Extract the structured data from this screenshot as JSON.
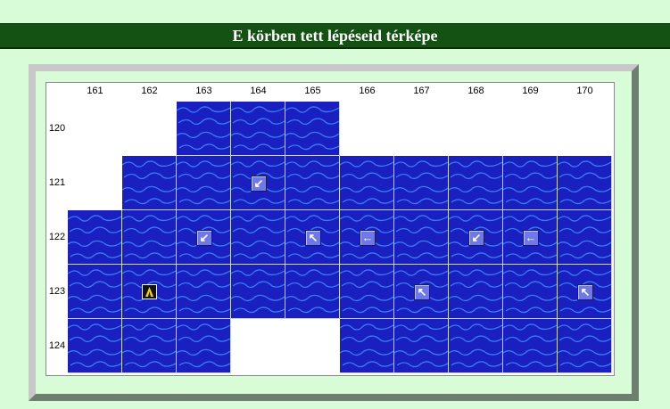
{
  "header": {
    "title": "E körben tett lépéseid térképe"
  },
  "map": {
    "columns": [
      "161",
      "162",
      "163",
      "164",
      "165",
      "166",
      "167",
      "168",
      "169",
      "170"
    ],
    "rows": [
      "120",
      "121",
      "122",
      "123",
      "124"
    ],
    "water_tiles": {
      "120": [
        "163",
        "164",
        "165"
      ],
      "121": [
        "162",
        "163",
        "164",
        "165",
        "166",
        "167",
        "168",
        "169",
        "170"
      ],
      "122": [
        "161",
        "162",
        "163",
        "164",
        "165",
        "166",
        "167",
        "168",
        "169",
        "170"
      ],
      "123": [
        "161",
        "162",
        "163",
        "164",
        "165",
        "166",
        "167",
        "168",
        "169",
        "170"
      ],
      "124": [
        "161",
        "162",
        "163",
        "166",
        "167",
        "168",
        "169",
        "170"
      ]
    },
    "moves": [
      {
        "row": "121",
        "col": "164",
        "direction": "down-left",
        "glyph": "↙"
      },
      {
        "row": "122",
        "col": "163",
        "direction": "down-left",
        "glyph": "↙"
      },
      {
        "row": "122",
        "col": "165",
        "direction": "up-left",
        "glyph": "↖"
      },
      {
        "row": "122",
        "col": "166",
        "direction": "left",
        "glyph": "←"
      },
      {
        "row": "122",
        "col": "168",
        "direction": "down-left",
        "glyph": "↙"
      },
      {
        "row": "122",
        "col": "169",
        "direction": "left",
        "glyph": "←"
      },
      {
        "row": "123",
        "col": "167",
        "direction": "up-left",
        "glyph": "↖"
      },
      {
        "row": "123",
        "col": "170",
        "direction": "up-left",
        "glyph": "↖"
      }
    ],
    "unit": {
      "row": "123",
      "col": "162",
      "icon": "unit-marker-icon"
    },
    "colors": {
      "water": "#1a1fc0",
      "wave": "#3f8cff",
      "header": "#145214",
      "background": "#d8fcd8"
    }
  }
}
